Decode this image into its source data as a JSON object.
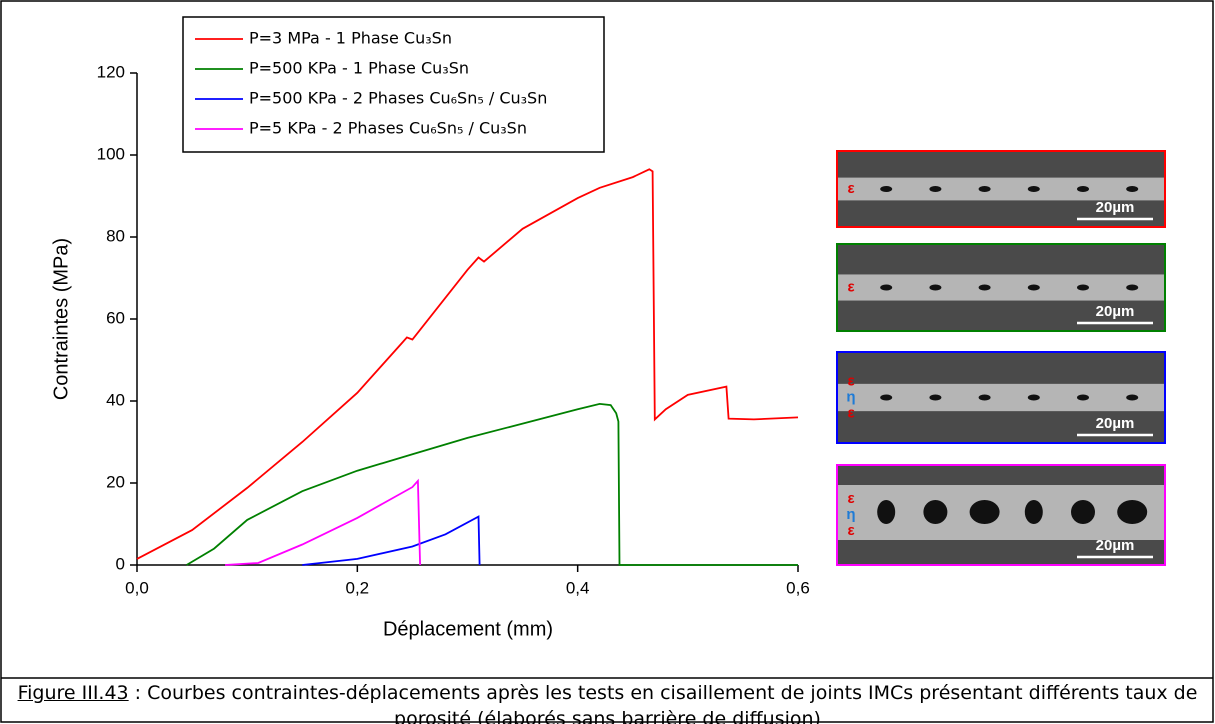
{
  "chart_data": {
    "type": "line",
    "xlabel": "Déplacement (mm)",
    "ylabel": "Contraintes (MPa)",
    "xlim": [
      0,
      0.6
    ],
    "ylim": [
      0,
      120
    ],
    "xticks": [
      {
        "value": 0,
        "label": "0,0"
      },
      {
        "value": 0.2,
        "label": "0,2"
      },
      {
        "value": 0.4,
        "label": "0,4"
      },
      {
        "value": 0.6,
        "label": "0,6"
      }
    ],
    "yticks": [
      0,
      20,
      40,
      60,
      80,
      100,
      120
    ],
    "legend": "upper left",
    "series": [
      {
        "name": "P=3 MPa - 1 Phase Cu₃Sn",
        "color": "#ff0000",
        "x": [
          0,
          0.05,
          0.1,
          0.15,
          0.2,
          0.24,
          0.245,
          0.25,
          0.3,
          0.31,
          0.315,
          0.35,
          0.4,
          0.42,
          0.45,
          0.465,
          0.468,
          0.47,
          0.48,
          0.5,
          0.535,
          0.537,
          0.56,
          0.6
        ],
        "values": [
          1.5,
          8.5,
          18.8,
          30,
          42,
          54,
          55.5,
          55,
          72,
          75,
          74,
          82,
          89.5,
          92,
          94.6,
          96.5,
          96,
          35.5,
          38,
          41.5,
          43.5,
          35.7,
          35.5,
          36
        ]
      },
      {
        "name": "P=500 KPa - 1 Phase Cu₃Sn",
        "color": "#008000",
        "x": [
          0.045,
          0.07,
          0.1,
          0.15,
          0.2,
          0.25,
          0.3,
          0.35,
          0.4,
          0.42,
          0.43,
          0.435,
          0.437,
          0.438,
          0.6
        ],
        "values": [
          0,
          4,
          11,
          18,
          23,
          27,
          31,
          34.5,
          38,
          39.3,
          39,
          37,
          35,
          0,
          0
        ]
      },
      {
        "name": "P=500 KPa - 2 Phases Cu₆Sn₅ / Cu₃Sn",
        "color": "#0000ff",
        "x": [
          0.15,
          0.2,
          0.25,
          0.28,
          0.31,
          0.311
        ],
        "values": [
          0,
          1.5,
          4.5,
          7.5,
          11.8,
          0
        ]
      },
      {
        "name": "P=5 KPa - 2 Phases Cu₆Sn₅ / Cu₃Sn",
        "color": "#ff00ff",
        "x": [
          0.08,
          0.11,
          0.15,
          0.2,
          0.25,
          0.255,
          0.257
        ],
        "values": [
          0,
          0.5,
          5,
          11.5,
          19,
          20.5,
          0
        ]
      }
    ]
  },
  "micrographs": [
    {
      "phase_labels": [
        "ε"
      ],
      "scale_bar": "20µm"
    },
    {
      "phase_labels": [
        "ε"
      ],
      "scale_bar": "20µm"
    },
    {
      "phase_labels": [
        "ε",
        "η",
        "ε"
      ],
      "scale_bar": "20µm"
    },
    {
      "phase_labels": [
        "ε",
        "η",
        "ε"
      ],
      "scale_bar": "20µm"
    }
  ],
  "caption": {
    "label": "Figure III.43",
    "text": " : Courbes contraintes-déplacements après les tests en cisaillement de joints IMCs présentant différents taux de porosité (élaborés sans barrière de diffusion)"
  }
}
